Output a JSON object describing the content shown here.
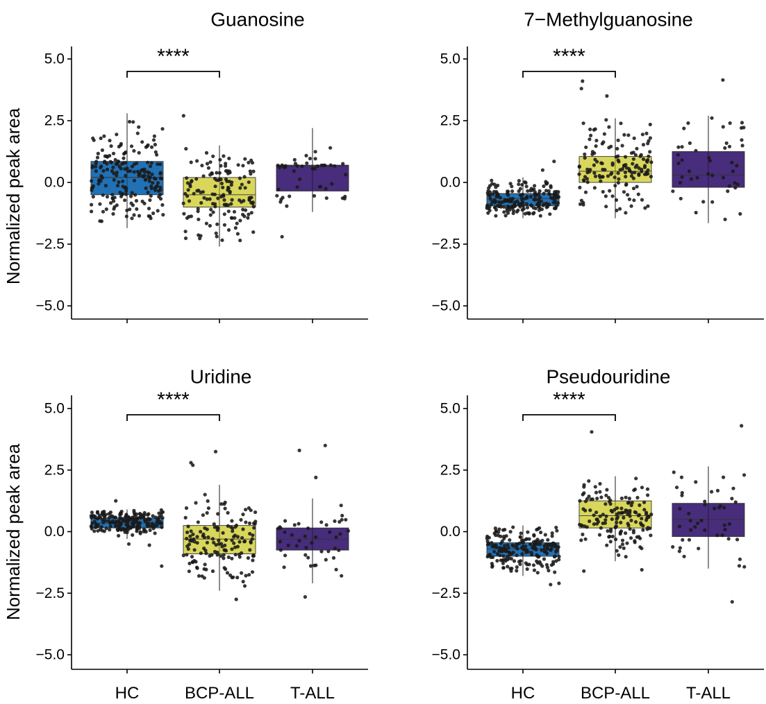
{
  "figure": {
    "y_axis_label": "Normalized peak area",
    "x_tick_labels": [
      "HC",
      "BCP-ALL",
      "T-ALL"
    ],
    "y_ticks": [
      5.0,
      2.5,
      0.0,
      -2.5,
      -5.0
    ],
    "y_tick_labels": [
      "5.0",
      "2.5",
      "0.0",
      "−2.5",
      "−5.0"
    ],
    "group_colors": {
      "HC": "#2171b5",
      "BCP-ALL": "#d9d75b",
      "T-ALL": "#472d7b"
    }
  },
  "chart_data": [
    {
      "type": "box",
      "title": "Guanosine",
      "ylim": [
        -5.6,
        5.5
      ],
      "significance": {
        "label": "****",
        "from": "HC",
        "to": "BCP-ALL"
      },
      "groups": [
        {
          "name": "HC",
          "n": 200,
          "q1": -0.5,
          "median": 0.2,
          "q3": 0.85,
          "whisker_low": -1.85,
          "whisker_high": 2.8,
          "extra_points": []
        },
        {
          "name": "BCP-ALL",
          "n": 150,
          "q1": -1.0,
          "median": -0.5,
          "q3": 0.2,
          "whisker_low": -2.6,
          "whisker_high": 1.5,
          "extra_points": [
            2.7
          ]
        },
        {
          "name": "T-ALL",
          "n": 45,
          "q1": -0.35,
          "median": 0.65,
          "q3": 0.7,
          "whisker_low": -1.2,
          "whisker_high": 2.2,
          "extra_points": [
            -2.2
          ]
        }
      ]
    },
    {
      "type": "box",
      "title": "7−Methylguanosine",
      "ylim": [
        -5.6,
        5.5
      ],
      "significance": {
        "label": "****",
        "from": "HC",
        "to": "BCP-ALL"
      },
      "groups": [
        {
          "name": "HC",
          "n": 200,
          "q1": -0.95,
          "median": -0.65,
          "q3": -0.45,
          "whisker_low": -1.45,
          "whisker_high": 0.2,
          "extra_points": [
            0.5,
            0.85
          ]
        },
        {
          "name": "BCP-ALL",
          "n": 150,
          "q1": 0.0,
          "median": 0.45,
          "q3": 1.05,
          "whisker_low": -1.45,
          "whisker_high": 2.6,
          "extra_points": [
            3.8,
            3.5,
            4.1
          ]
        },
        {
          "name": "T-ALL",
          "n": 45,
          "q1": -0.2,
          "median": 0.3,
          "q3": 1.25,
          "whisker_low": -1.65,
          "whisker_high": 2.7,
          "extra_points": [
            4.15
          ]
        }
      ]
    },
    {
      "type": "box",
      "title": "Uridine",
      "ylim": [
        -5.6,
        5.5
      ],
      "significance": {
        "label": "****",
        "from": "HC",
        "to": "BCP-ALL"
      },
      "groups": [
        {
          "name": "HC",
          "n": 200,
          "q1": 0.15,
          "median": 0.35,
          "q3": 0.55,
          "whisker_low": -0.3,
          "whisker_high": 0.9,
          "extra_points": [
            -1.4,
            1.25,
            -0.55,
            -0.5
          ]
        },
        {
          "name": "BCP-ALL",
          "n": 150,
          "q1": -0.9,
          "median": -0.3,
          "q3": 0.25,
          "whisker_low": -2.4,
          "whisker_high": 1.9,
          "extra_points": [
            3.25,
            2.8,
            2.7,
            -2.75
          ]
        },
        {
          "name": "T-ALL",
          "n": 45,
          "q1": -0.75,
          "median": -0.3,
          "q3": 0.15,
          "whisker_low": -2.1,
          "whisker_high": 1.35,
          "extra_points": [
            3.5,
            3.3,
            2.2,
            -2.65
          ]
        }
      ]
    },
    {
      "type": "box",
      "title": "Pseudouridine",
      "ylim": [
        -5.6,
        5.5
      ],
      "significance": {
        "label": "****",
        "from": "HC",
        "to": "BCP-ALL"
      },
      "groups": [
        {
          "name": "HC",
          "n": 200,
          "q1": -1.0,
          "median": -0.7,
          "q3": -0.45,
          "whisker_low": -1.8,
          "whisker_high": 0.25,
          "extra_points": [
            -2.15,
            -2.1
          ]
        },
        {
          "name": "BCP-ALL",
          "n": 150,
          "q1": 0.15,
          "median": 0.65,
          "q3": 1.25,
          "whisker_low": -1.2,
          "whisker_high": 2.25,
          "extra_points": [
            4.05,
            -1.6,
            -1.55
          ]
        },
        {
          "name": "T-ALL",
          "n": 45,
          "q1": -0.2,
          "median": 0.5,
          "q3": 1.15,
          "whisker_low": -1.5,
          "whisker_high": 2.65,
          "extra_points": [
            4.3,
            -2.85
          ]
        }
      ]
    }
  ]
}
